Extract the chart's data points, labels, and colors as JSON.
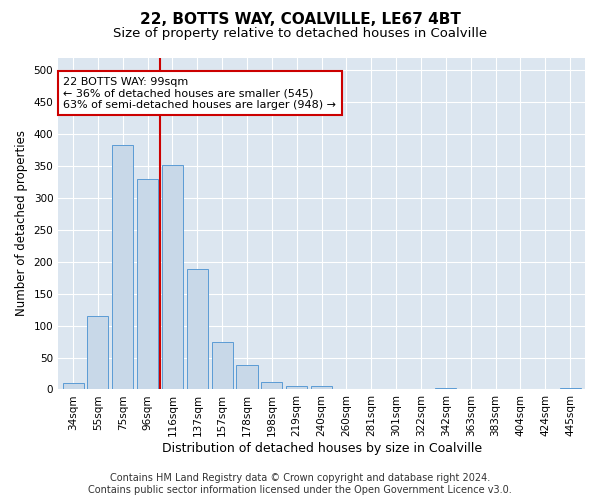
{
  "title1": "22, BOTTS WAY, COALVILLE, LE67 4BT",
  "title2": "Size of property relative to detached houses in Coalville",
  "xlabel": "Distribution of detached houses by size in Coalville",
  "ylabel": "Number of detached properties",
  "categories": [
    "34sqm",
    "55sqm",
    "75sqm",
    "96sqm",
    "116sqm",
    "137sqm",
    "157sqm",
    "178sqm",
    "198sqm",
    "219sqm",
    "240sqm",
    "260sqm",
    "281sqm",
    "301sqm",
    "322sqm",
    "342sqm",
    "363sqm",
    "383sqm",
    "404sqm",
    "424sqm",
    "445sqm"
  ],
  "values": [
    10,
    115,
    383,
    330,
    352,
    188,
    75,
    38,
    12,
    6,
    5,
    1,
    1,
    0,
    0,
    2,
    0,
    0,
    0,
    0,
    2
  ],
  "bar_color": "#c8d8e8",
  "bar_edge_color": "#5b9bd5",
  "vline_x": 3.5,
  "vline_color": "#cc0000",
  "annotation_text": "22 BOTTS WAY: 99sqm\n← 36% of detached houses are smaller (545)\n63% of semi-detached houses are larger (948) →",
  "annotation_box_facecolor": "#ffffff",
  "annotation_box_edgecolor": "#cc0000",
  "ylim": [
    0,
    520
  ],
  "yticks": [
    0,
    50,
    100,
    150,
    200,
    250,
    300,
    350,
    400,
    450,
    500
  ],
  "plot_bg_color": "#dce6f0",
  "footer_text": "Contains HM Land Registry data © Crown copyright and database right 2024.\nContains public sector information licensed under the Open Government Licence v3.0.",
  "title1_fontsize": 11,
  "title2_fontsize": 9.5,
  "xlabel_fontsize": 9,
  "ylabel_fontsize": 8.5,
  "tick_fontsize": 7.5,
  "annot_fontsize": 8,
  "footer_fontsize": 7
}
